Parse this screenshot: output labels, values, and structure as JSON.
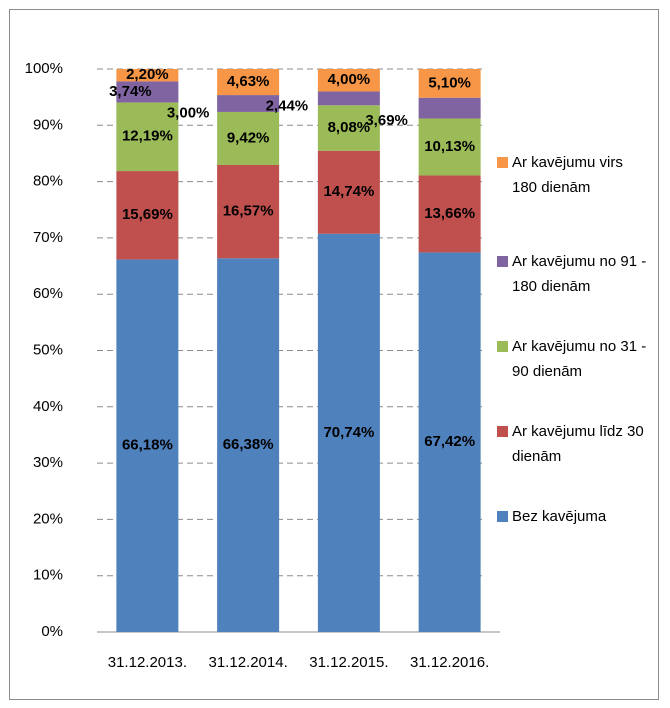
{
  "chart_data": {
    "type": "stacked_bar",
    "categories": [
      "31.12.2013.",
      "31.12.2014.",
      "31.12.2015.",
      "31.12.2016."
    ],
    "series": [
      {
        "name": "Bez kavējuma",
        "color": "#4f81bd",
        "values": [
          66.18,
          66.38,
          70.74,
          67.42
        ],
        "value_labels": [
          "66,18%",
          "66,38%",
          "70,74%",
          "67,42%"
        ]
      },
      {
        "name": "Ar kavējumu līdz 30 dienām",
        "color": "#c0504d",
        "values": [
          15.69,
          16.57,
          14.74,
          13.66
        ],
        "value_labels": [
          "15,69%",
          "16,57%",
          "14,74%",
          "13,66%"
        ]
      },
      {
        "name": "Ar kavējumu no 31 - 90 dienām",
        "color": "#9bbb59",
        "values": [
          12.19,
          9.42,
          8.08,
          10.13
        ],
        "value_labels": [
          "12,19%",
          "9,42%",
          "8,08%",
          "10,13%"
        ]
      },
      {
        "name": "Ar kavējumu no 91 - 180 dienām",
        "color": "#8064a2",
        "values": [
          3.74,
          3.0,
          2.44,
          3.69
        ],
        "value_labels": [
          "3,74%",
          "3,00%",
          "2,44%",
          "3,69%"
        ]
      },
      {
        "name": "Ar kavējumu virs 180 dienām",
        "color": "#f79646",
        "values": [
          2.2,
          4.63,
          4.0,
          5.1
        ],
        "value_labels": [
          "2,20%",
          "4,63%",
          "4,00%",
          "5,10%"
        ]
      }
    ],
    "ylim": [
      0,
      100
    ],
    "yticks": [
      {
        "value": 0,
        "label": "0%"
      },
      {
        "value": 10,
        "label": "10%"
      },
      {
        "value": 20,
        "label": "20%"
      },
      {
        "value": 30,
        "label": "30%"
      },
      {
        "value": 40,
        "label": "40%"
      },
      {
        "value": 50,
        "label": "50%"
      },
      {
        "value": 60,
        "label": "60%"
      },
      {
        "value": 70,
        "label": "70%"
      },
      {
        "value": 80,
        "label": "80%"
      },
      {
        "value": 90,
        "label": "90%"
      },
      {
        "value": 100,
        "label": "100%"
      }
    ],
    "grid": true,
    "legend": "right"
  }
}
